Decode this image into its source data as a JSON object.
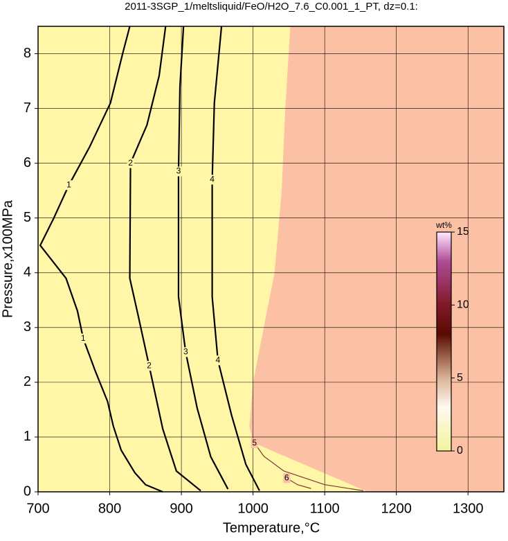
{
  "chart_data": {
    "type": "contour",
    "title": "2011-3SGP_1/meltsliquid/FeO/H2O_7.6_C0.001_1_PT, dz=0.1:",
    "xlabel": "Temperature,°C",
    "ylabel": "Pressure,x100MPa",
    "xlim": [
      700,
      1350
    ],
    "ylim": [
      0,
      8.5
    ],
    "xticks": [
      700,
      800,
      900,
      1000,
      1100,
      1200,
      1300
    ],
    "yticks": [
      0,
      1,
      2,
      3,
      4,
      5,
      6,
      7,
      8
    ],
    "grid": true,
    "background_color": "#fff6a8",
    "region": {
      "color": "#fcc0a4",
      "x": [
        1052,
        1045,
        1040,
        1030,
        1015,
        1000,
        995,
        1000,
        1160,
        1350,
        1350
      ],
      "y": [
        8.5,
        7,
        5.5,
        4,
        3,
        2,
        1.2,
        0.9,
        0,
        0,
        8.5
      ]
    },
    "contours": [
      {
        "level": 1,
        "x": [
          828,
          818,
          801,
          772,
          743,
          722,
          703,
          715,
          739,
          755,
          763,
          780,
          797,
          805,
          816,
          835,
          850,
          874
        ],
        "y": [
          8.5,
          8.0,
          7.1,
          6.3,
          5.6,
          5.0,
          4.5,
          4.3,
          3.9,
          3.3,
          2.8,
          2.2,
          1.65,
          1.2,
          0.76,
          0.35,
          0.13,
          0
        ]
      },
      {
        "level": 2,
        "x": [
          878,
          869,
          852,
          829,
          828,
          840,
          855,
          874,
          893,
          927
        ],
        "y": [
          8.5,
          7.6,
          6.7,
          6.0,
          3.9,
          3.2,
          2.3,
          1.15,
          0.38,
          0.02
        ]
      },
      {
        "level": 3,
        "x": [
          903,
          898,
          896,
          896,
          906,
          922,
          941,
          965
        ],
        "y": [
          8.5,
          7.4,
          5.85,
          3.56,
          2.55,
          1.53,
          0.64,
          0.05
        ]
      },
      {
        "level": 4,
        "x": [
          956,
          946,
          943,
          943,
          951,
          970,
          990,
          1009
        ],
        "y": [
          8.5,
          7.1,
          5.7,
          3.56,
          2.4,
          1.4,
          0.5,
          0.02
        ]
      },
      {
        "level": 5,
        "x": [
          1002,
          1015,
          1043,
          1100,
          1154
        ],
        "y": [
          0.89,
          0.65,
          0.38,
          0.13,
          0.02
        ]
      },
      {
        "level": 6,
        "x": [
          1047,
          1062,
          1081
        ],
        "y": [
          0.25,
          0.13,
          0.06
        ]
      }
    ],
    "colorbar": {
      "label": "wt%",
      "clim": [
        0,
        15
      ],
      "ticks": [
        0,
        5,
        10,
        15
      ],
      "colormap": [
        {
          "value": 0,
          "color": "#f4f49c"
        },
        {
          "value": 3,
          "color": "#fff8f0"
        },
        {
          "value": 5,
          "color": "#d8b494"
        },
        {
          "value": 8,
          "color": "#5a0a00"
        },
        {
          "value": 10,
          "color": "#801828"
        },
        {
          "value": 13,
          "color": "#b04c98"
        },
        {
          "value": 15,
          "color": "#ffe8ff"
        }
      ]
    }
  }
}
